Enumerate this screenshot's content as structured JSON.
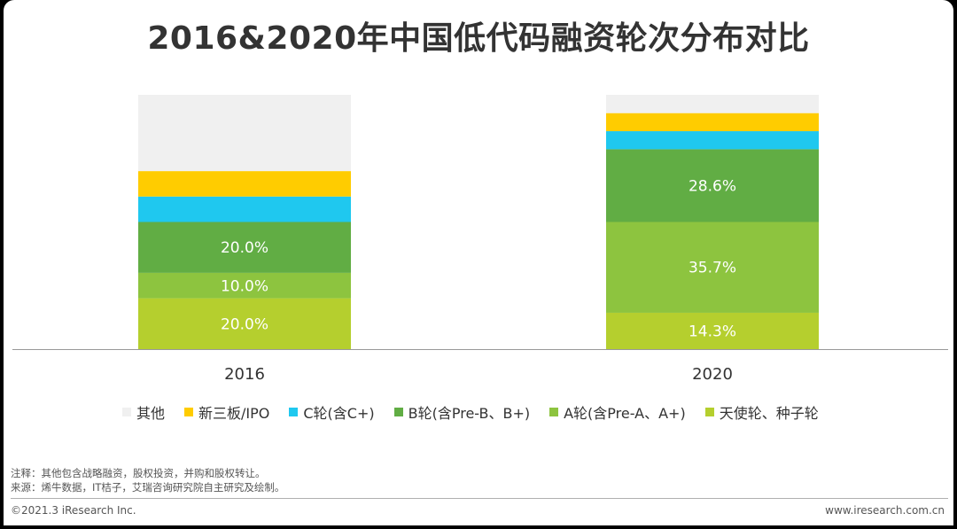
{
  "title": "2016&2020年中国低代码融资轮次分布对比",
  "chart_data": {
    "type": "bar",
    "stacked": true,
    "categories": [
      "2016",
      "2020"
    ],
    "ylim": [
      0,
      100
    ],
    "series": [
      {
        "name": "天使轮、种子轮",
        "color": "#b5cf2e",
        "values": [
          20.0,
          14.3
        ],
        "labels": [
          "20.0%",
          "14.3%"
        ]
      },
      {
        "name": "A轮(含Pre-A、A+)",
        "color": "#8dc43f",
        "values": [
          10.0,
          35.7
        ],
        "labels": [
          "10.0%",
          "35.7%"
        ]
      },
      {
        "name": "B轮(含Pre-B、B+)",
        "color": "#61ad44",
        "values": [
          20.0,
          28.6
        ],
        "labels": [
          "20.0%",
          "28.6%"
        ]
      },
      {
        "name": "C轮(含C+)",
        "color": "#1fc8ef",
        "values": [
          10.0,
          7.1
        ],
        "labels": [
          "",
          ""
        ]
      },
      {
        "name": "新三板/IPO",
        "color": "#ffcc00",
        "values": [
          10.0,
          7.1
        ],
        "labels": [
          "",
          ""
        ]
      },
      {
        "name": "其他",
        "color": "#f0f0f0",
        "values": [
          30.0,
          7.2
        ],
        "labels": [
          "",
          ""
        ]
      }
    ]
  },
  "legend": [
    {
      "label": "其他",
      "color": "#f0f0f0"
    },
    {
      "label": "新三板/IPO",
      "color": "#ffcc00"
    },
    {
      "label": "C轮(含C+)",
      "color": "#1fc8ef"
    },
    {
      "label": "B轮(含Pre-B、B+)",
      "color": "#61ad44"
    },
    {
      "label": "A轮(含Pre-A、A+)",
      "color": "#8dc43f"
    },
    {
      "label": "天使轮、种子轮",
      "color": "#b5cf2e"
    }
  ],
  "notes": {
    "note": "注释：其他包含战略融资，股权投资，并购和股权转让。",
    "source": "来源：烯牛数据，IT桔子，艾瑞咨询研究院自主研究及绘制。"
  },
  "footer": {
    "copyright": "©2021.3 iResearch Inc.",
    "website": "www.iresearch.com.cn"
  }
}
